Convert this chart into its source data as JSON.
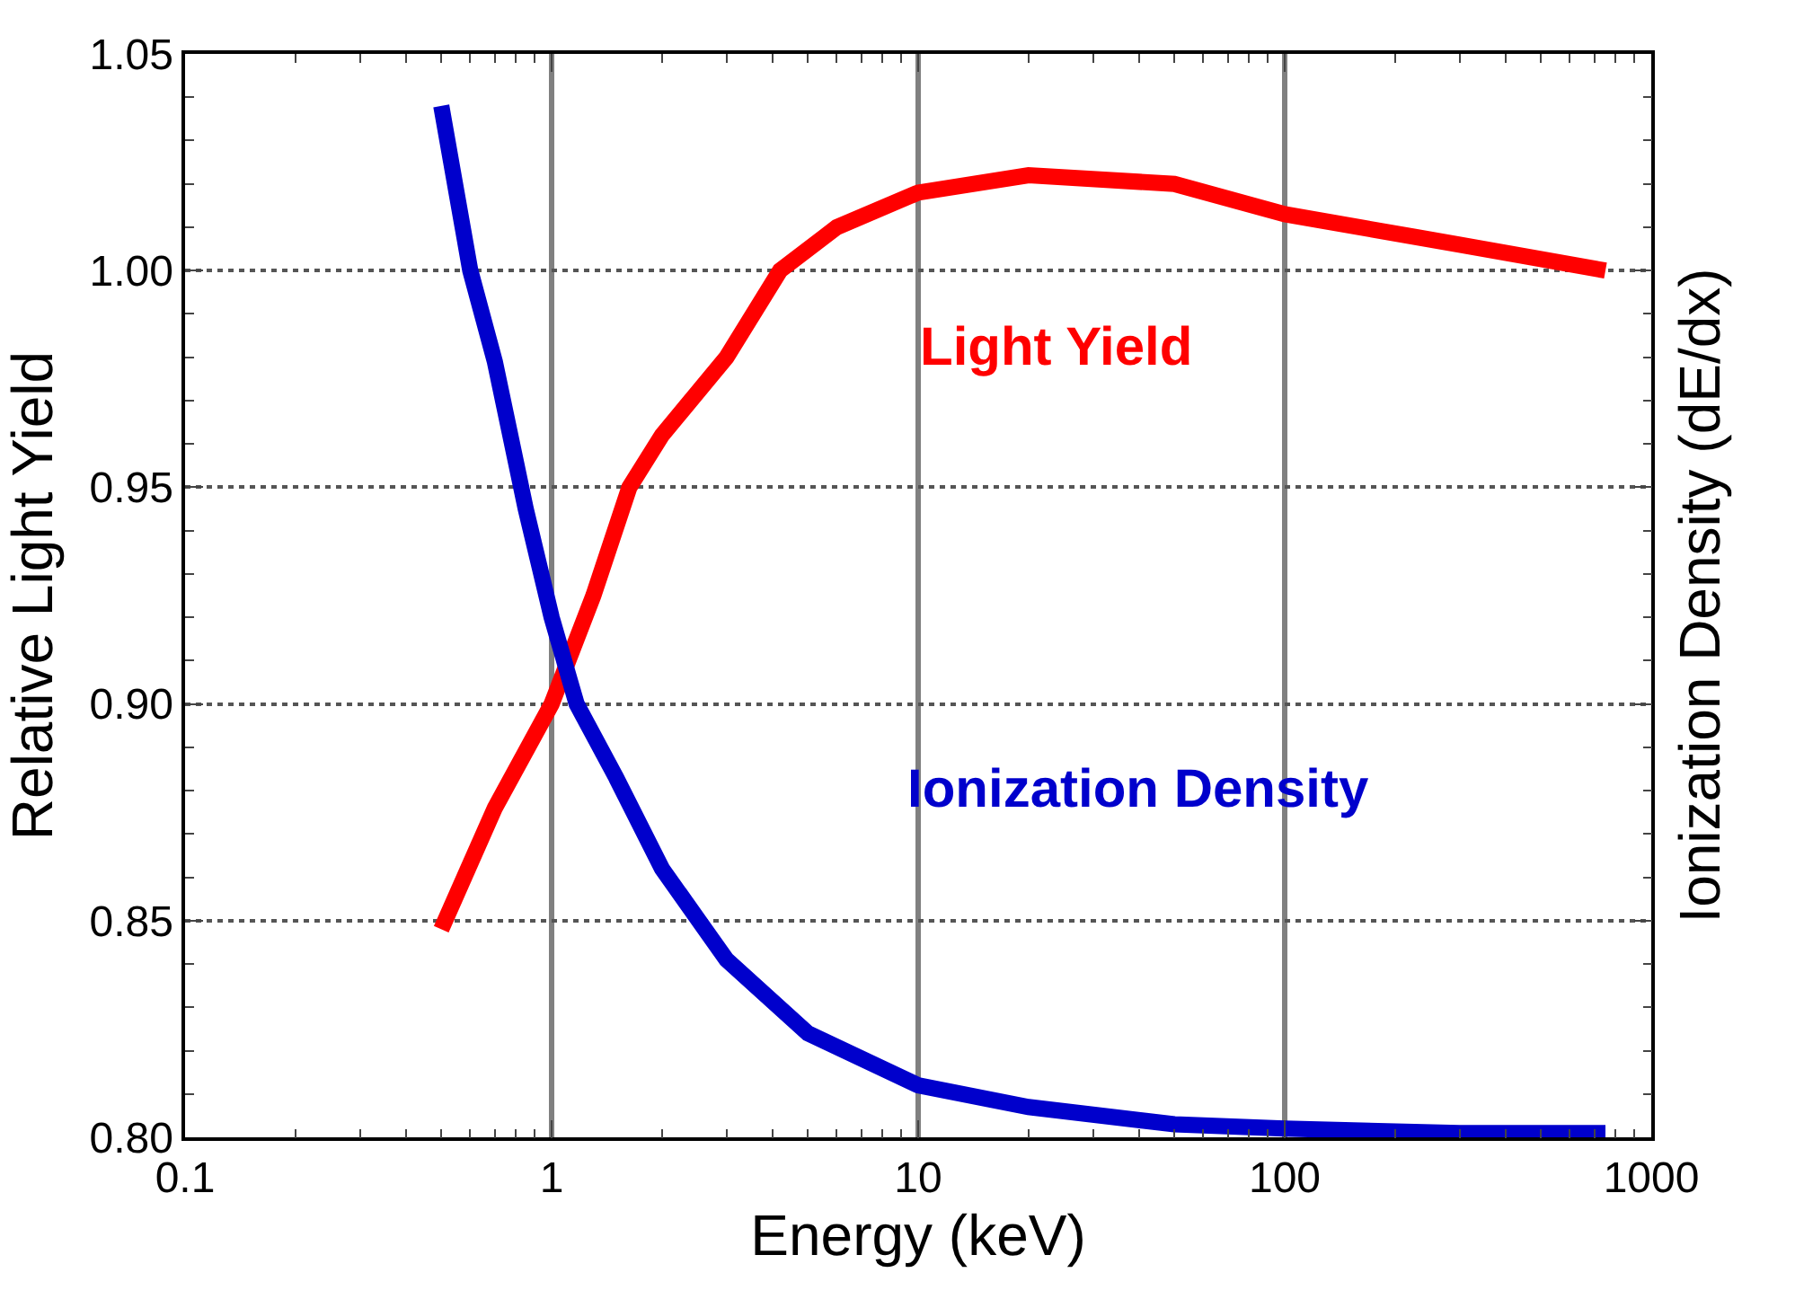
{
  "chart_data": {
    "type": "line",
    "xlabel": "Energy (keV)",
    "ylabel": "Relative Light Yield",
    "y2label": "Ionization Density (dE/dx)",
    "log": "x",
    "xlim": [
      0.1,
      1000
    ],
    "xticks": [
      0.1,
      1,
      10,
      100,
      1000
    ],
    "ylim": [
      0.8,
      1.05
    ],
    "yticks": [
      {
        "value": 0.8,
        "label": "0.80"
      },
      0.85,
      {
        "value": 0.9,
        "label": "0.90"
      },
      0.95,
      {
        "value": 1.0,
        "label": "1.00"
      },
      1.05
    ],
    "grid": true,
    "marker": "none",
    "line_style": "solid",
    "series": [
      {
        "color": "#ff0000",
        "x": [
          0.5,
          0.7,
          1,
          1.3,
          1.63,
          2,
          3,
          4.2,
          6,
          10,
          20,
          50,
          100,
          300,
          750
        ],
        "values": [
          0.848,
          0.876,
          0.9,
          0.925,
          0.95,
          0.962,
          0.98,
          1.0,
          1.01,
          1.018,
          1.022,
          1.02,
          1.013,
          1.006,
          1.0
        ]
      },
      {
        "color": "#0000cc",
        "x": [
          0.5,
          0.6,
          0.7,
          0.85,
          1,
          1.17,
          1.5,
          2,
          3,
          5,
          10,
          20,
          50,
          100,
          300,
          750
        ],
        "values": [
          1.038,
          1.0,
          0.979,
          0.945,
          0.92,
          0.9,
          0.883,
          0.862,
          0.841,
          0.824,
          0.812,
          0.807,
          0.803,
          0.802,
          0.801,
          0.801
        ]
      }
    ],
    "annotations": [
      "Light Yield",
      "Ionization Density"
    ]
  }
}
